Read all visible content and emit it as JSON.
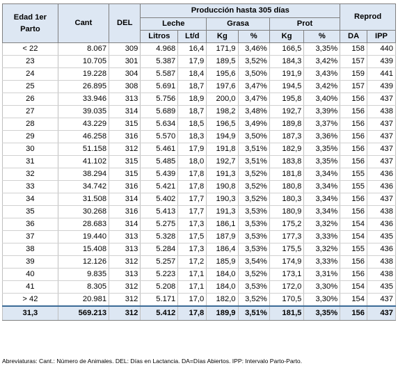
{
  "headers": {
    "edad": "Edad 1er Parto",
    "cant": "Cant",
    "del": "DEL",
    "produccion": "Producción hasta 305 días",
    "leche": "Leche",
    "grasa": "Grasa",
    "prot": "Prot",
    "reprod": "Reprod",
    "litros": "Litros",
    "ltd": "Lt/d",
    "kg_grasa": "Kg",
    "pct_grasa": "%",
    "kg_prot": "Kg",
    "pct_prot": "%",
    "da": "DA",
    "ipp": "IPP"
  },
  "rows": [
    [
      "< 22",
      "8.067",
      "309",
      "4.968",
      "16,4",
      "171,9",
      "3,46%",
      "166,5",
      "3,35%",
      "158",
      "440"
    ],
    [
      "23",
      "10.705",
      "301",
      "5.387",
      "17,9",
      "189,5",
      "3,52%",
      "184,3",
      "3,42%",
      "157",
      "439"
    ],
    [
      "24",
      "19.228",
      "304",
      "5.587",
      "18,4",
      "195,6",
      "3,50%",
      "191,9",
      "3,43%",
      "159",
      "441"
    ],
    [
      "25",
      "26.895",
      "308",
      "5.691",
      "18,7",
      "197,6",
      "3,47%",
      "194,5",
      "3,42%",
      "157",
      "439"
    ],
    [
      "26",
      "33.946",
      "313",
      "5.756",
      "18,9",
      "200,0",
      "3,47%",
      "195,8",
      "3,40%",
      "156",
      "437"
    ],
    [
      "27",
      "39.035",
      "314",
      "5.689",
      "18,7",
      "198,2",
      "3,48%",
      "192,7",
      "3,39%",
      "156",
      "438"
    ],
    [
      "28",
      "43.229",
      "315",
      "5.634",
      "18,5",
      "196,5",
      "3,49%",
      "189,8",
      "3,37%",
      "156",
      "437"
    ],
    [
      "29",
      "46.258",
      "316",
      "5.570",
      "18,3",
      "194,9",
      "3,50%",
      "187,3",
      "3,36%",
      "156",
      "437"
    ],
    [
      "30",
      "51.158",
      "312",
      "5.461",
      "17,9",
      "191,8",
      "3,51%",
      "182,9",
      "3,35%",
      "156",
      "437"
    ],
    [
      "31",
      "41.102",
      "315",
      "5.485",
      "18,0",
      "192,7",
      "3,51%",
      "183,8",
      "3,35%",
      "156",
      "437"
    ],
    [
      "32",
      "38.294",
      "315",
      "5.439",
      "17,8",
      "191,3",
      "3,52%",
      "181,8",
      "3,34%",
      "155",
      "436"
    ],
    [
      "33",
      "34.742",
      "316",
      "5.421",
      "17,8",
      "190,8",
      "3,52%",
      "180,8",
      "3,34%",
      "155",
      "436"
    ],
    [
      "34",
      "31.508",
      "314",
      "5.402",
      "17,7",
      "190,3",
      "3,52%",
      "180,3",
      "3,34%",
      "156",
      "437"
    ],
    [
      "35",
      "30.268",
      "316",
      "5.413",
      "17,7",
      "191,3",
      "3,53%",
      "180,9",
      "3,34%",
      "156",
      "438"
    ],
    [
      "36",
      "28.683",
      "314",
      "5.275",
      "17,3",
      "186,1",
      "3,53%",
      "175,2",
      "3,32%",
      "154",
      "436"
    ],
    [
      "37",
      "19.440",
      "313",
      "5.328",
      "17,5",
      "187,9",
      "3,53%",
      "177,3",
      "3,33%",
      "154",
      "435"
    ],
    [
      "38",
      "15.408",
      "313",
      "5.284",
      "17,3",
      "186,4",
      "3,53%",
      "175,5",
      "3,32%",
      "155",
      "436"
    ],
    [
      "39",
      "12.126",
      "312",
      "5.257",
      "17,2",
      "185,9",
      "3,54%",
      "174,9",
      "3,33%",
      "156",
      "438"
    ],
    [
      "40",
      "9.835",
      "313",
      "5.223",
      "17,1",
      "184,0",
      "3,52%",
      "173,1",
      "3,31%",
      "156",
      "438"
    ],
    [
      "41",
      "8.305",
      "312",
      "5.208",
      "17,1",
      "184,0",
      "3,53%",
      "172,0",
      "3,30%",
      "154",
      "435"
    ],
    [
      "> 42",
      "20.981",
      "312",
      "5.171",
      "17,0",
      "182,0",
      "3,52%",
      "170,5",
      "3,30%",
      "154",
      "437"
    ]
  ],
  "total": [
    "31,3",
    "569.213",
    "312",
    "5.412",
    "17,8",
    "189,9",
    "3,51%",
    "181,5",
    "3,35%",
    "156",
    "437"
  ],
  "footnote": "Abreviaturas: Cant.: Número de Animales. DEL: Días en Lactancia. DA=Días Abiertos. IPP: Intervalo Parto-Parto."
}
